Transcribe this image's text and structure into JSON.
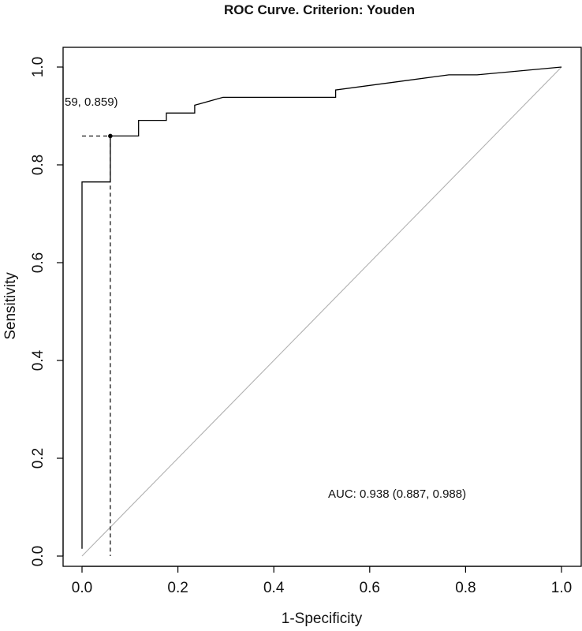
{
  "chart_data": {
    "type": "line",
    "title": "ROC Curve. Criterion: Youden",
    "xlabel": "1-Specificity",
    "ylabel": "Sensitivity",
    "xlim": [
      0,
      1
    ],
    "ylim": [
      0,
      1
    ],
    "x_ticks": [
      "0.0",
      "0.2",
      "0.4",
      "0.6",
      "0.8",
      "1.0"
    ],
    "y_ticks": [
      "0.0",
      "0.2",
      "0.4",
      "0.6",
      "0.8",
      "1.0"
    ],
    "grid": false,
    "series": [
      {
        "x": [
          0,
          0,
          0.059,
          0.059,
          0.118,
          0.118,
          0.176,
          0.176,
          0.235,
          0.235,
          0.294,
          0.529,
          0.529,
          0.765,
          0.824,
          1.0
        ],
        "y": [
          0.015,
          0.765,
          0.765,
          0.859,
          0.859,
          0.891,
          0.891,
          0.906,
          0.906,
          0.922,
          0.938,
          0.938,
          0.953,
          0.984,
          0.984,
          1.0
        ]
      }
    ],
    "reference_line": {
      "x": [
        0,
        1
      ],
      "y": [
        0,
        1
      ],
      "color": "#b0b0b0"
    },
    "optimal_point": {
      "x": 0.059,
      "y": 0.859,
      "label": "59, 0.859)"
    },
    "auc_text": "AUC: 0.938 (0.887, 0.988)"
  }
}
